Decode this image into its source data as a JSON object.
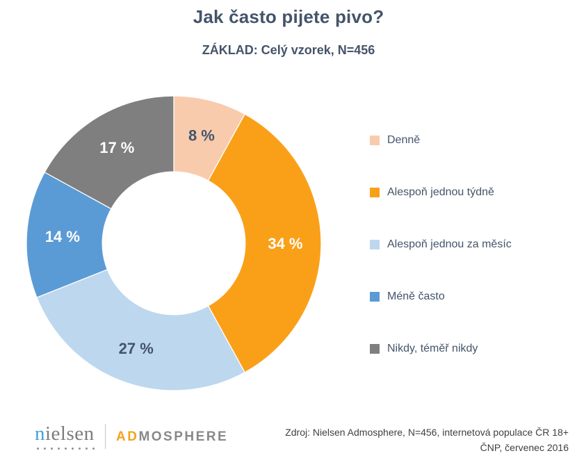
{
  "header": {
    "title": "Jak často pijete pivo?",
    "subtitle": "ZÁKLAD: Celý vzorek, N=456"
  },
  "chart_data": {
    "type": "pie",
    "subtype": "donut",
    "title": "Jak často pijete pivo?",
    "base_note": "ZÁKLAD: Celý vzorek, N=456",
    "categories": [
      "Denně",
      "Alespoň jednou týdně",
      "Alespoň jednou za měsíc",
      "Méně často",
      "Nikdy, téměř nikdy"
    ],
    "values": [
      8,
      34,
      27,
      14,
      17
    ],
    "unit": "%",
    "data_labels": [
      "8 %",
      "34 %",
      "27 %",
      "14 %",
      "17 %"
    ],
    "colors": [
      "#F8CBAD",
      "#FAA018",
      "#BDD7EE",
      "#5B9BD5",
      "#7F7F7F"
    ],
    "data_label_colors": [
      "#44546A",
      "#FFFFFF",
      "#44546A",
      "#FFFFFF",
      "#FFFFFF"
    ],
    "start_angle_deg": 0,
    "direction": "clockwise",
    "donut_hole_ratio": 0.485,
    "slice_border_color": "#FFFFFF",
    "legend_position": "right"
  },
  "footer": {
    "source_line1": "Zdroj: Nielsen Admosphere, N=456, internetová populace ČR 18+",
    "source_line2": "ČNP, červenec 2016",
    "logos": {
      "nielsen_initial": "n",
      "nielsen_rest": "ielsen",
      "admosphere_accent": "AD",
      "admosphere_rest": "MOSPHERE"
    }
  },
  "theme": {
    "heading_color": "#44546A",
    "legend_text_color": "#44546A",
    "source_text_color": "#3F3F3F",
    "nielsen_blue": "#3FA3D7",
    "logo_gray": "#7B7C7F",
    "admosphere_orange": "#F5A21B"
  }
}
